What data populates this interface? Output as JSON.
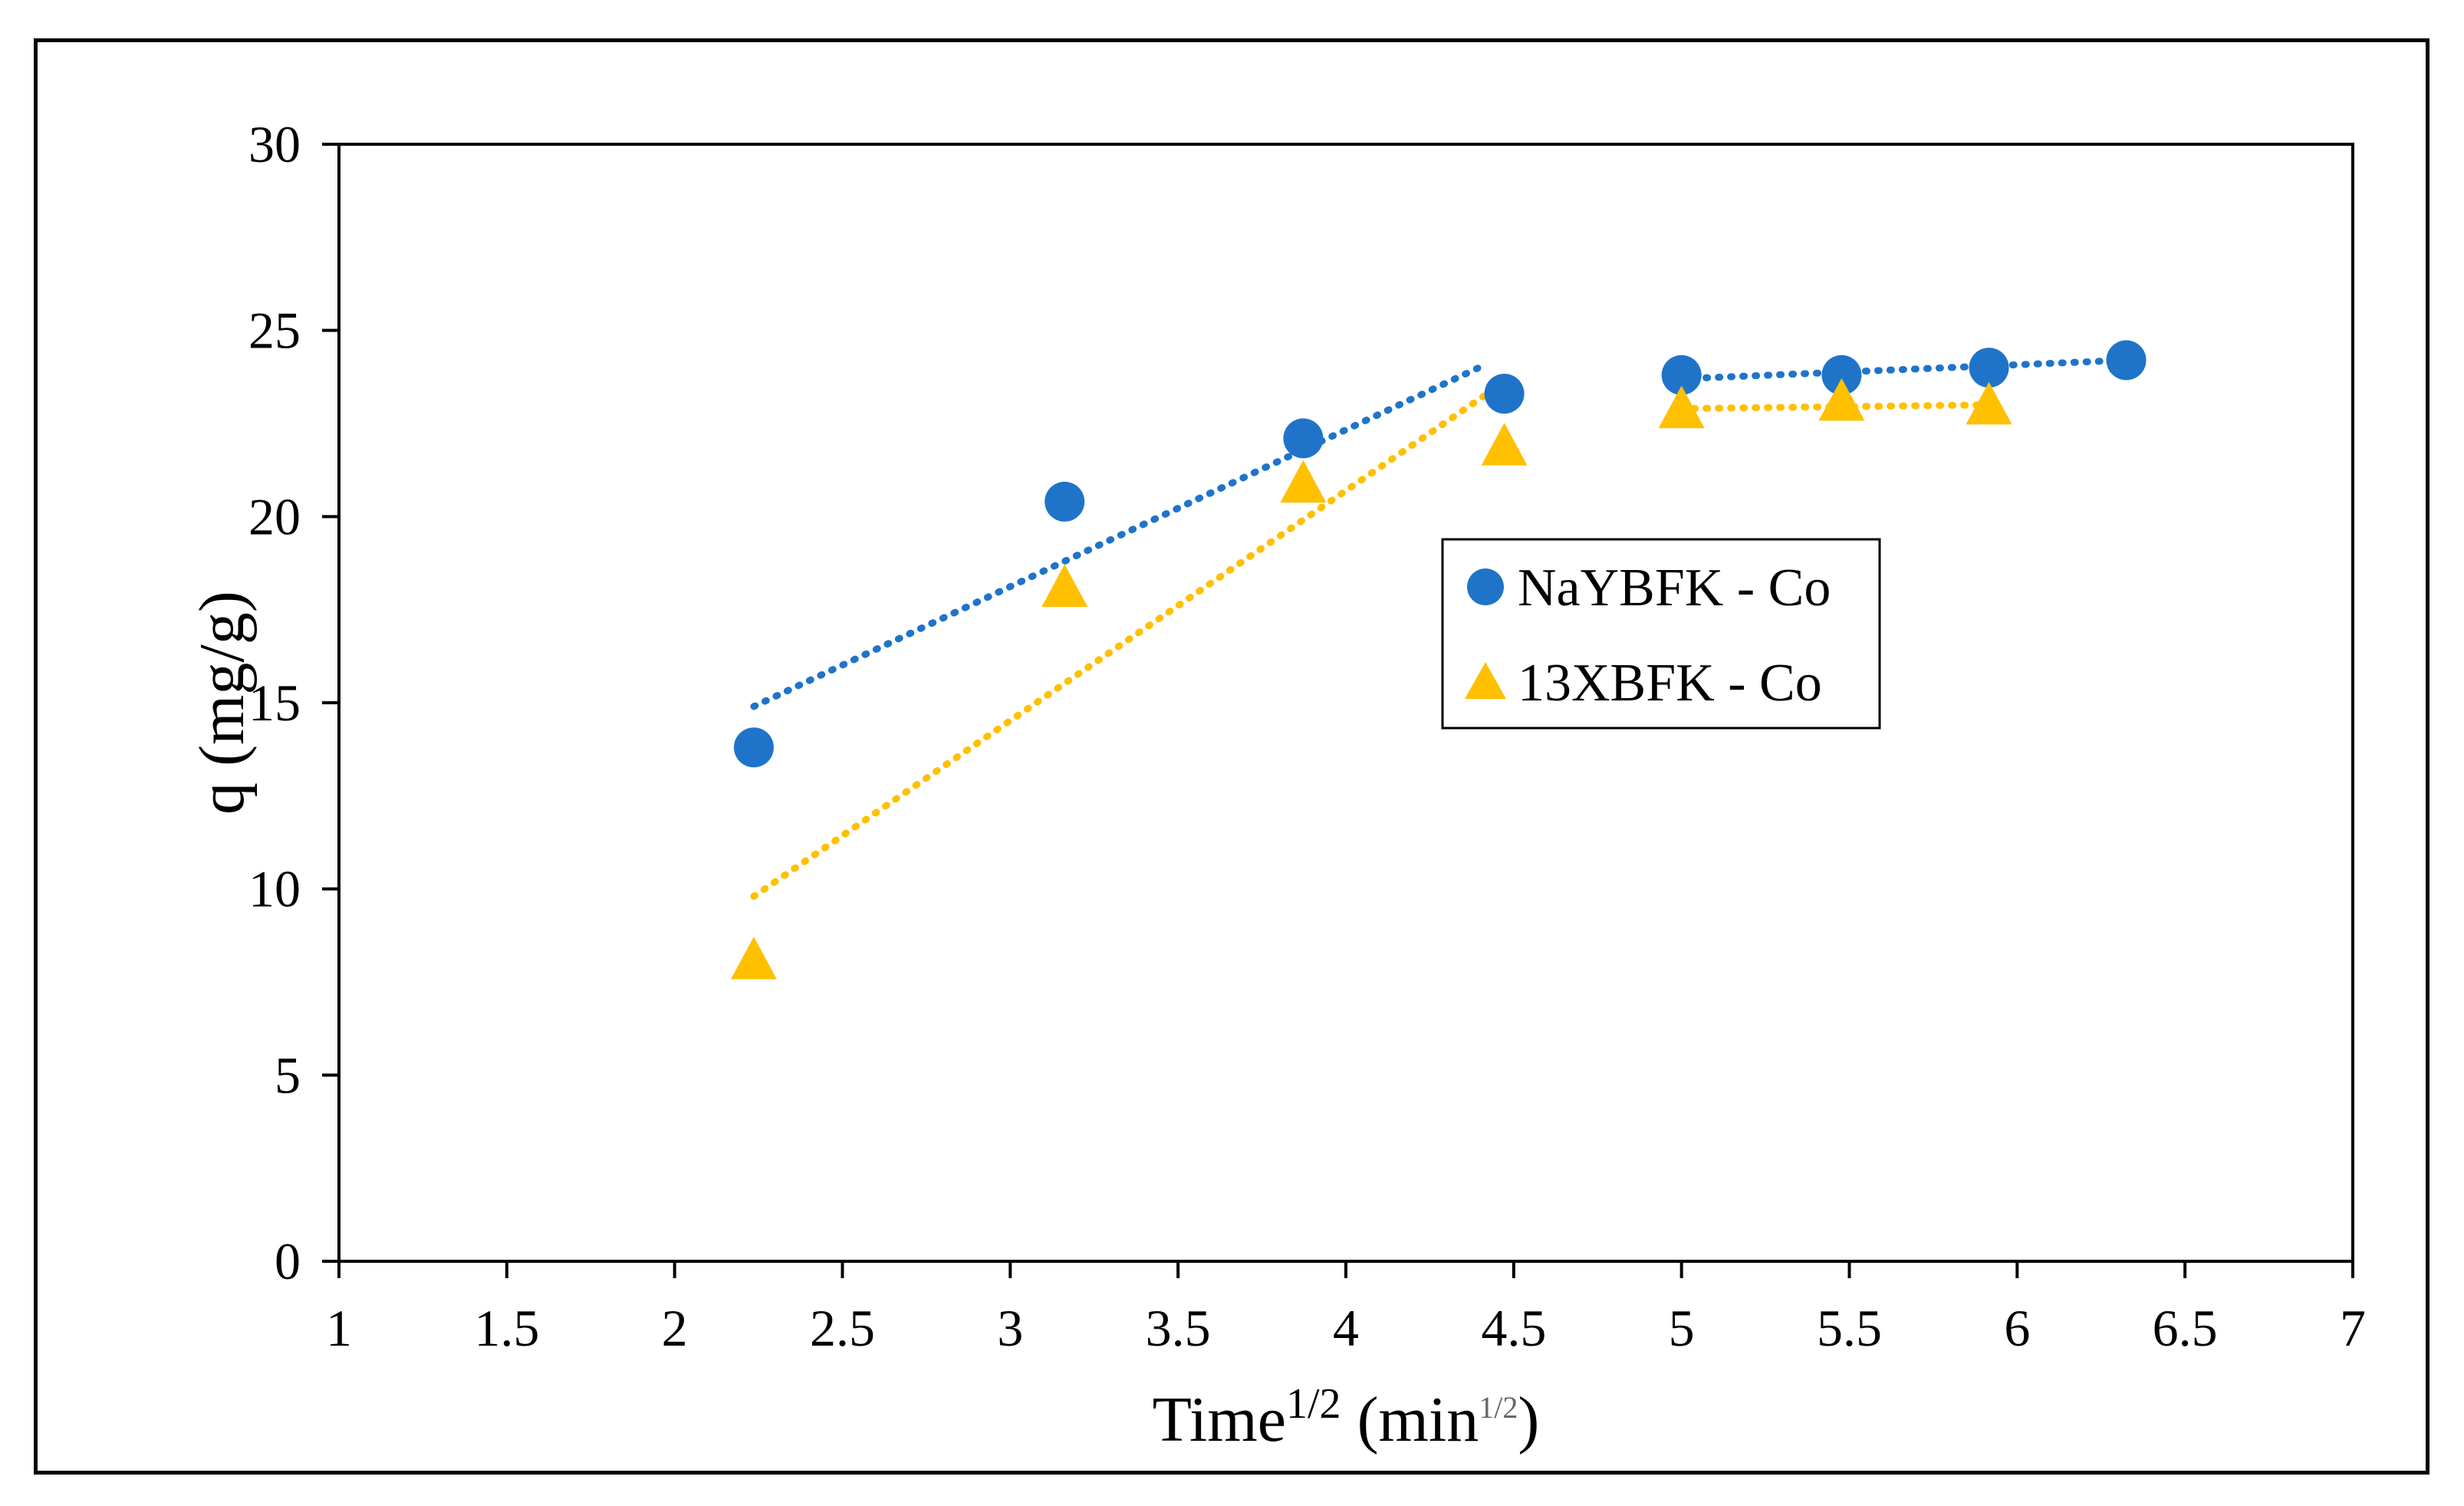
{
  "chart_data": {
    "type": "scatter",
    "title": "",
    "xlabel": "Time",
    "xlabel_sup": "1/2",
    "xlabel_unit_open": " (min",
    "xlabel_unit_sup": "1/2",
    "xlabel_unit_close": ")",
    "ylabel": "q (mg/g)",
    "xlim": [
      1,
      7
    ],
    "ylim": [
      0,
      30
    ],
    "x_ticks": [
      1,
      1.5,
      2,
      2.5,
      3,
      3.5,
      4,
      4.5,
      5,
      5.5,
      6,
      6.5,
      7
    ],
    "x_tick_labels": [
      "1",
      "1.5",
      "2",
      "2.5",
      "3",
      "3.5",
      "4",
      "4.5",
      "5",
      "5.5",
      "6",
      "6.5",
      "7"
    ],
    "y_ticks": [
      0,
      5,
      10,
      15,
      20,
      25,
      30
    ],
    "y_tick_labels": [
      "0",
      "5",
      "10",
      "15",
      "20",
      "25",
      "30"
    ],
    "grid": false,
    "legend_position": "center-right",
    "series": [
      {
        "name": "NaYBFK - Co",
        "marker": "circle",
        "color": "#1F74C9",
        "x": [
          2.236,
          3.162,
          3.873,
          4.472,
          5.0,
          5.477,
          5.916,
          6.325
        ],
        "y": [
          13.8,
          20.4,
          22.1,
          23.3,
          23.8,
          23.8,
          24.0,
          24.2
        ],
        "trendlines": [
          {
            "x": [
              2.236,
              4.42
            ],
            "y": [
              14.9,
              24.1
            ]
          },
          {
            "x": [
              5.0,
              6.325
            ],
            "y": [
              23.7,
              24.2
            ]
          }
        ]
      },
      {
        "name": "13XBFK - Co",
        "marker": "triangle",
        "color": "#FFC000",
        "x": [
          2.236,
          3.162,
          3.873,
          4.472,
          5.0,
          5.477,
          5.916
        ],
        "y": [
          8.1,
          18.1,
          20.9,
          21.9,
          22.9,
          23.1,
          23.0
        ],
        "trendlines": [
          {
            "x": [
              2.236,
              4.47
            ],
            "y": [
              9.8,
              23.6
            ]
          },
          {
            "x": [
              5.0,
              5.916
            ],
            "y": [
              22.9,
              23.0
            ]
          }
        ]
      }
    ]
  }
}
